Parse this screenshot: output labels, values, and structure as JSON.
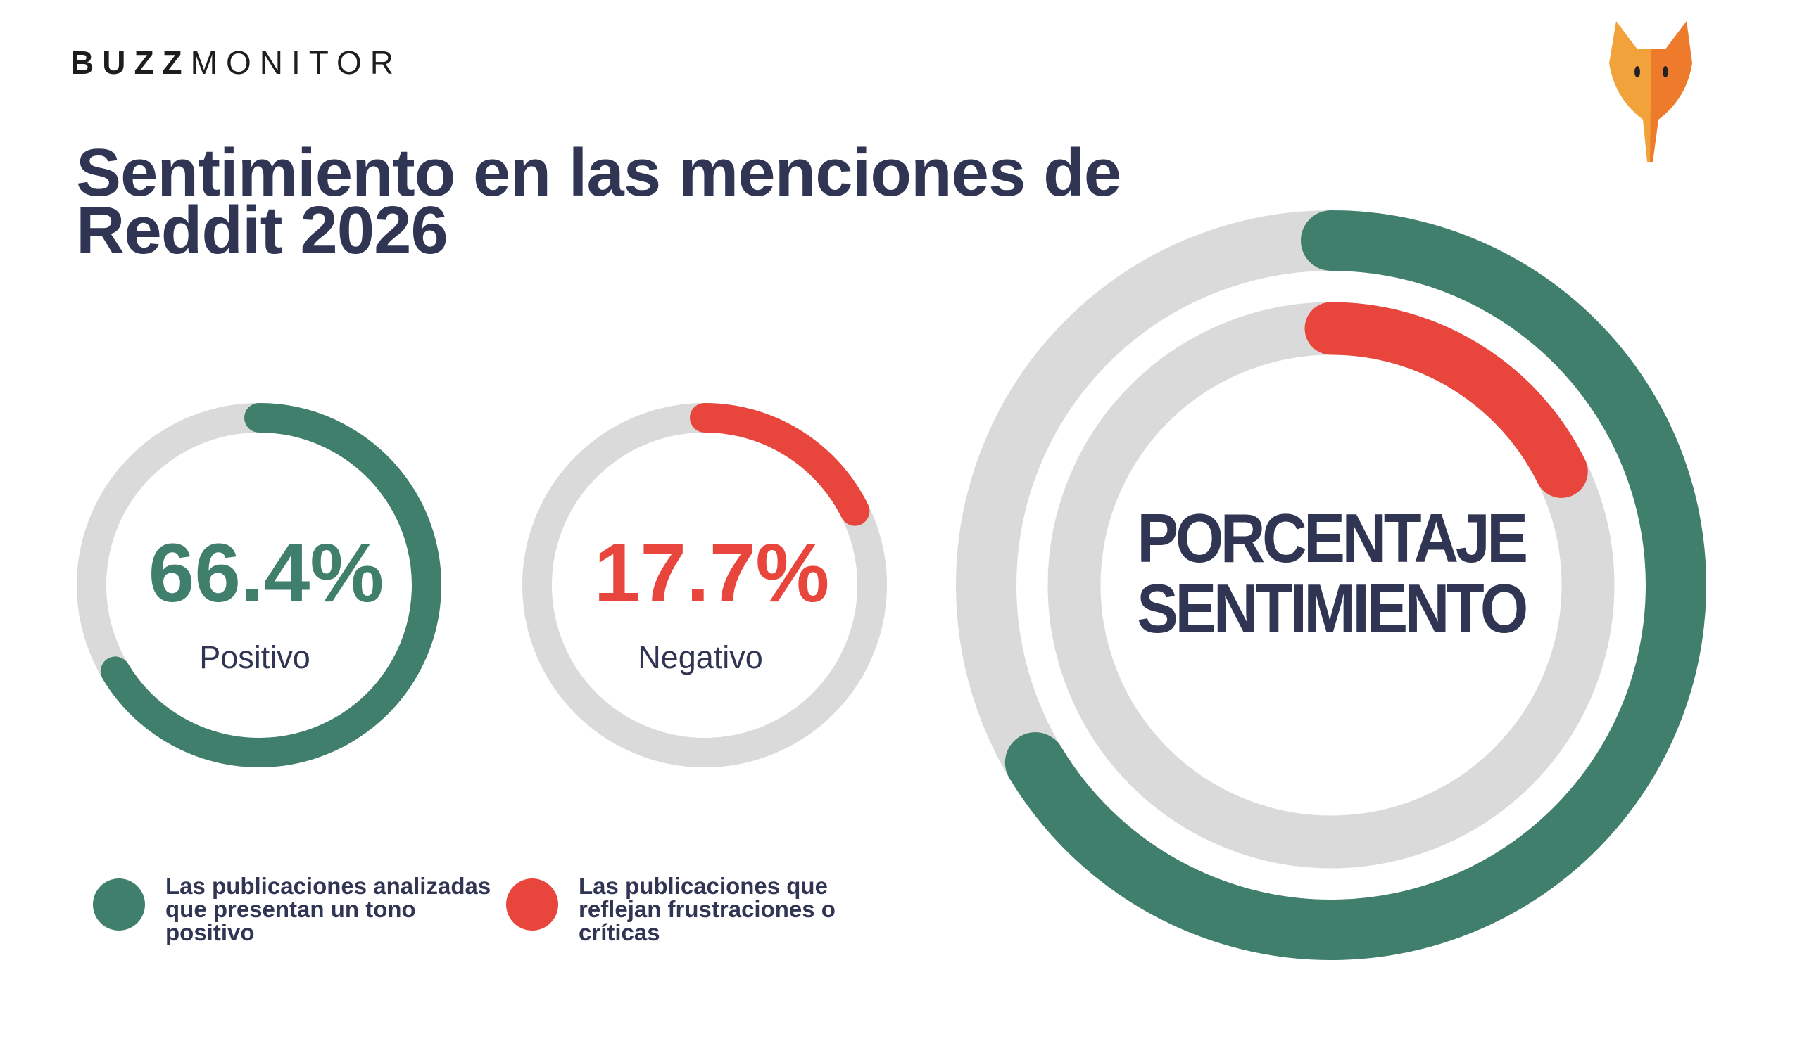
{
  "logo": {
    "bold": "BUZZ",
    "light": "MONITOR"
  },
  "chart_data": {
    "type": "donut",
    "title": "Sentimiento en las menciones de Reddit 2026",
    "center_label": "PORCENTAJE SENTIMIENTO",
    "ylim": [
      0,
      100
    ],
    "series": [
      {
        "name": "Positivo",
        "color": "#3f7f6c",
        "values": [
          66.4
        ],
        "value_labels": [
          "66.4%"
        ],
        "description": "Las publicaciones analizadas que presentan un tono positivo"
      },
      {
        "name": "Negativo",
        "color": "#e8453c",
        "values": [
          17.7
        ],
        "value_labels": [
          "17.7%"
        ],
        "description": "Las publicaciones que reflejan frustraciones o críticas"
      }
    ]
  }
}
